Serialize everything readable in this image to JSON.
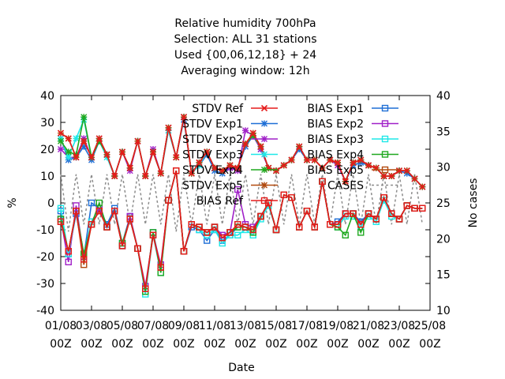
{
  "chart_data": {
    "type": "line",
    "title_lines": [
      "Relative humidity 700hPa",
      "Selection: ALL     31 stations",
      "Used {00,06,12,18} + 24",
      "Averaging window: 12h"
    ],
    "xlabel": "Date",
    "ylabel": "%",
    "y2label": "No cases",
    "ylim": [
      -40,
      40
    ],
    "y2lim": [
      10,
      40
    ],
    "yticks": [
      "40",
      "30",
      "20",
      "10",
      "0",
      "-10",
      "-20",
      "-30",
      "-40"
    ],
    "y2ticks": [
      "40",
      "35",
      "30",
      "25",
      "20",
      "15",
      "10"
    ],
    "xtick_dates": [
      "01/08",
      "03/08",
      "05/08",
      "07/08",
      "09/08",
      "11/08",
      "13/08",
      "15/08",
      "17/08",
      "19/08",
      "21/08",
      "23/08",
      "25/08"
    ],
    "xtick_hours": [
      "00Z",
      "00Z",
      "00Z",
      "00Z",
      "00Z",
      "00Z",
      "00Z",
      "00Z",
      "00Z",
      "00Z",
      "00Z",
      "00Z",
      "00Z"
    ],
    "x_days": [
      1.0,
      1.5,
      2.0,
      2.5,
      3.0,
      3.5,
      4.0,
      4.5,
      5.0,
      5.5,
      6.0,
      6.5,
      7.0,
      7.5,
      8.0,
      8.5,
      9.0,
      9.5,
      10.0,
      10.5,
      11.0,
      11.5,
      12.0,
      12.5,
      13.0,
      13.5,
      14.0,
      14.5,
      15.0,
      15.5,
      16.0,
      16.5,
      17.0,
      17.5,
      18.0,
      18.5,
      19.0,
      19.5,
      20.0,
      20.5,
      21.0,
      21.5,
      22.0,
      22.5,
      23.0,
      23.5,
      24.0,
      24.5
    ],
    "stdv_ref": [
      26,
      24,
      17,
      23,
      17,
      24,
      18,
      10,
      19,
      13,
      23,
      10,
      19,
      11,
      28,
      17,
      32,
      11,
      15,
      19,
      13,
      12,
      14,
      13,
      22,
      26,
      21,
      13,
      12,
      14,
      16,
      21,
      16,
      16,
      13,
      16,
      15,
      8,
      15,
      16,
      14,
      13,
      10,
      10,
      12,
      12,
      9,
      6
    ],
    "bias_ref": [
      -7,
      -18,
      -3,
      -21,
      -8,
      -3,
      -9,
      -3,
      -16,
      -6,
      -17,
      -32,
      -12,
      -24,
      1,
      12,
      -18,
      -8,
      -9,
      -11,
      -9,
      -13,
      -11,
      -8,
      -9,
      -10,
      -5,
      0,
      -10,
      3,
      2,
      -9,
      -3,
      -9,
      8,
      -8,
      -8,
      -4,
      -4,
      -8,
      -4,
      -6,
      2,
      -4,
      -6,
      -1,
      -2,
      -2
    ],
    "series": [
      {
        "name": "STDV Ref",
        "color": "#e51b1b",
        "marker": "x",
        "offsets": [
          0,
          0,
          0,
          0,
          0,
          0,
          0,
          0,
          0,
          0,
          0,
          0,
          0,
          0,
          0,
          0,
          0,
          0,
          0,
          0,
          0,
          0,
          0,
          0,
          0,
          0,
          0,
          0,
          0,
          0,
          0,
          0,
          0,
          0,
          0,
          0,
          0,
          0,
          0,
          0,
          0,
          0,
          0,
          0,
          0,
          0,
          0,
          0
        ],
        "base": "stdv"
      },
      {
        "name": "STDV Exp1",
        "color": "#1f6fd6",
        "marker": "star",
        "values": [
          24,
          16,
          17,
          21,
          16,
          23,
          18,
          10,
          19,
          13,
          23,
          10,
          19,
          11,
          27,
          17,
          31,
          11,
          14,
          18,
          12,
          11,
          13,
          13,
          21,
          25,
          20,
          13,
          12,
          14,
          16,
          20,
          16,
          16,
          13,
          16,
          15,
          8,
          14,
          15,
          14,
          13,
          10,
          10,
          12,
          11,
          9,
          6
        ]
      },
      {
        "name": "STDV Exp2",
        "color": "#a020c8",
        "marker": "star",
        "values": [
          20,
          17,
          17,
          24,
          17,
          24,
          18,
          10,
          19,
          12,
          23,
          10,
          20,
          11,
          28,
          17,
          32,
          11,
          15,
          19,
          13,
          12,
          13,
          12,
          27,
          25,
          20,
          13,
          12,
          14,
          16,
          21,
          16,
          16,
          13,
          16,
          14,
          8,
          15,
          16,
          14,
          13,
          10,
          10,
          12,
          12,
          9,
          6
        ]
      },
      {
        "name": "STDV Exp3",
        "color": "#1ee8e8",
        "marker": "star",
        "values": [
          24,
          17,
          24,
          31,
          17,
          23,
          17,
          10,
          19,
          13,
          23,
          10,
          19,
          11,
          27,
          17,
          32,
          11,
          14,
          19,
          13,
          12,
          14,
          13,
          22,
          25,
          21,
          13,
          12,
          14,
          16,
          21,
          16,
          16,
          13,
          16,
          15,
          8,
          15,
          16,
          14,
          13,
          10,
          10,
          12,
          12,
          9,
          6
        ]
      },
      {
        "name": "STDV Exp4",
        "color": "#1fa81f",
        "marker": "star",
        "values": [
          23,
          19,
          18,
          32,
          17,
          23,
          18,
          10,
          19,
          13,
          23,
          10,
          19,
          11,
          28,
          17,
          32,
          11,
          15,
          19,
          13,
          12,
          14,
          13,
          22,
          25,
          21,
          13,
          12,
          14,
          16,
          21,
          16,
          16,
          13,
          16,
          15,
          8,
          15,
          16,
          14,
          13,
          10,
          10,
          12,
          12,
          9,
          6
        ]
      },
      {
        "name": "STDV Exp5",
        "color": "#b24a0e",
        "marker": "star",
        "values": [
          26,
          24,
          17,
          23,
          17,
          24,
          18,
          10,
          19,
          13,
          23,
          10,
          19,
          11,
          28,
          17,
          32,
          11,
          15,
          19,
          13,
          12,
          14,
          13,
          22,
          26,
          21,
          13,
          12,
          14,
          16,
          21,
          16,
          16,
          13,
          16,
          15,
          8,
          15,
          16,
          14,
          13,
          10,
          10,
          12,
          12,
          9,
          6
        ]
      },
      {
        "name": "BIAS Ref",
        "color": "#e51b1b",
        "marker": "square",
        "base": "bias"
      },
      {
        "name": "BIAS Exp1",
        "color": "#1f6fd6",
        "marker": "square",
        "values": [
          -3,
          -19,
          -4,
          -20,
          0,
          -2,
          -8,
          -2,
          -15,
          -5,
          -17,
          -33,
          -11,
          -24,
          1,
          12,
          -18,
          -9,
          -10,
          -14,
          -10,
          -14,
          -12,
          -9,
          -9,
          -10,
          -5,
          0,
          -10,
          3,
          2,
          -9,
          -3,
          -9,
          8,
          -8,
          -7,
          -4,
          -4,
          -7,
          -4,
          -6,
          2,
          -4,
          -6,
          -1,
          -2,
          -2
        ]
      },
      {
        "name": "BIAS Exp2",
        "color": "#a020c8",
        "marker": "square",
        "values": [
          -6,
          -22,
          -1,
          -20,
          -7,
          -2,
          -9,
          -3,
          -16,
          -5,
          -17,
          -31,
          -12,
          -23,
          1,
          12,
          -18,
          -8,
          -9,
          -11,
          -9,
          -12,
          -11,
          5,
          -8,
          -9,
          -5,
          0,
          -10,
          3,
          2,
          -9,
          -3,
          -9,
          8,
          -8,
          -8,
          -4,
          -4,
          -8,
          -4,
          -6,
          2,
          -4,
          -6,
          -1,
          -2,
          -2
        ]
      },
      {
        "name": "BIAS Exp3",
        "color": "#1ee8e8",
        "marker": "square",
        "values": [
          -2,
          -19,
          -3,
          -19,
          -7,
          -3,
          -9,
          -3,
          -16,
          -6,
          -17,
          -34,
          -12,
          -26,
          1,
          12,
          -18,
          -8,
          -10,
          -12,
          -10,
          -15,
          -12,
          -12,
          -10,
          -12,
          -6,
          -1,
          -10,
          3,
          2,
          -9,
          -3,
          -9,
          8,
          -8,
          -9,
          -5,
          -5,
          -9,
          -5,
          -7,
          1,
          -5,
          -6,
          -1,
          -2,
          -2
        ]
      },
      {
        "name": "BIAS Exp4",
        "color": "#1fa81f",
        "marker": "square",
        "values": [
          -6,
          -18,
          -3,
          -19,
          -8,
          0,
          -9,
          -3,
          -15,
          -6,
          -17,
          -33,
          -11,
          -26,
          1,
          12,
          -18,
          -8,
          -9,
          -11,
          -9,
          -13,
          -11,
          -9,
          -9,
          -11,
          -5,
          0,
          -10,
          3,
          2,
          -9,
          -3,
          -9,
          8,
          -8,
          -9,
          -12,
          -4,
          -11,
          -4,
          -6,
          2,
          -4,
          -6,
          -1,
          -2,
          -2
        ]
      },
      {
        "name": "BIAS Exp5",
        "color": "#b24a0e",
        "marker": "square",
        "values": [
          -7,
          -18,
          -3,
          -23,
          -8,
          -3,
          -9,
          -3,
          -16,
          -6,
          -17,
          -32,
          -12,
          -24,
          1,
          12,
          -18,
          -8,
          -9,
          -11,
          -9,
          -13,
          -11,
          -8,
          -9,
          -10,
          -5,
          0,
          -10,
          3,
          2,
          -9,
          -3,
          -9,
          8,
          -8,
          -8,
          -4,
          -4,
          -8,
          -4,
          -6,
          2,
          -4,
          -6,
          -1,
          -2,
          -2
        ]
      },
      {
        "name": "CASES",
        "color": "#8c8c8c",
        "marker": "none",
        "dashed": true,
        "values": [
          29,
          21,
          29,
          22,
          29,
          22,
          29,
          22,
          29,
          22,
          29,
          22,
          29,
          22,
          29,
          21,
          29,
          22,
          29,
          22,
          29,
          22,
          29,
          22,
          29,
          22,
          29,
          22,
          29,
          22,
          29,
          22,
          29,
          22,
          29,
          22,
          29,
          22,
          29,
          22,
          29,
          22,
          29,
          22,
          29,
          22,
          29,
          22
        ]
      }
    ],
    "grid": false,
    "legend_position": "top-right inside"
  }
}
